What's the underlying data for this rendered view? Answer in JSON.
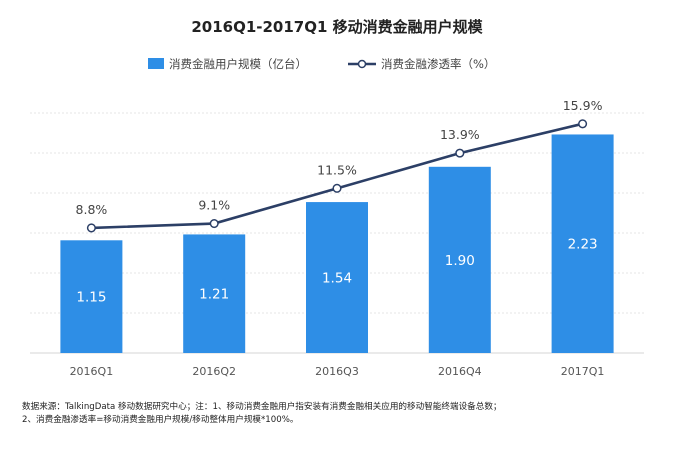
{
  "chart_data": {
    "type": "bar",
    "title": "2016Q1-2017Q1  移动消费金融用户规模",
    "categories": [
      "2016Q1",
      "2016Q2",
      "2016Q3",
      "2016Q4",
      "2017Q1"
    ],
    "series": [
      {
        "name": "消费金融用户规模（亿台）",
        "kind": "bar",
        "values": [
          1.15,
          1.21,
          1.54,
          1.9,
          2.23
        ],
        "labels": [
          "1.15",
          "1.21",
          "1.54",
          "1.90",
          "2.23"
        ],
        "color": "#2e8ee6"
      },
      {
        "name": "消费金融渗透率（%）",
        "kind": "line",
        "values": [
          8.8,
          9.1,
          11.5,
          13.9,
          15.9
        ],
        "labels": [
          "8.8%",
          "9.1%",
          "11.5%",
          "13.9%",
          "15.9%"
        ],
        "color": "#2c3f66"
      }
    ],
    "bar_axis_range": [
      0,
      2.5
    ],
    "line_axis_range": [
      0,
      21
    ],
    "grid": true,
    "legend_position": "top-center",
    "notes": [
      "数据来源：TalkingData 移动数据研究中心；注：1、移动消费金融用户指安装有消费金融相关应用的移动智能终端设备总数；",
      "2、消费金融渗透率=移动消费金融用户规模/移动整体用户规模*100%。"
    ]
  }
}
